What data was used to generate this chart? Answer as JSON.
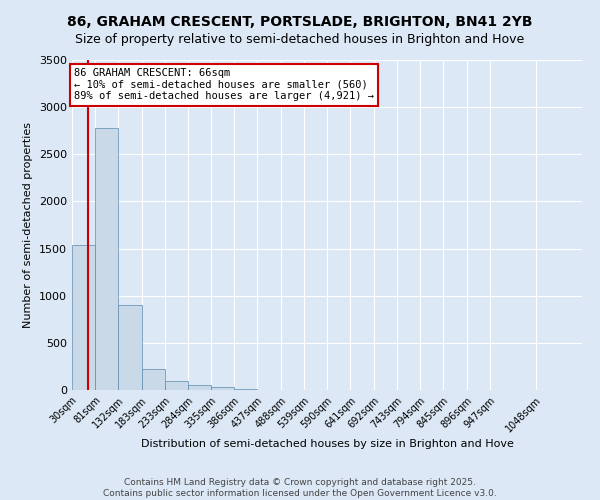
{
  "title": "86, GRAHAM CRESCENT, PORTSLADE, BRIGHTON, BN41 2YB",
  "subtitle": "Size of property relative to semi-detached houses in Brighton and Hove",
  "xlabel": "Distribution of semi-detached houses by size in Brighton and Hove",
  "ylabel": "Number of semi-detached properties",
  "bin_edges": [
    30,
    81,
    132,
    183,
    233,
    284,
    335,
    386,
    437,
    488,
    539,
    590,
    641,
    692,
    743,
    794,
    845,
    896,
    947,
    1048
  ],
  "bar_heights": [
    1540,
    2780,
    900,
    220,
    100,
    50,
    30,
    10,
    4,
    2,
    1,
    1,
    0,
    1,
    0,
    0,
    0,
    0,
    2
  ],
  "bar_color": "#c9d9e8",
  "bar_edge_color": "#5a8ab0",
  "property_size": 66,
  "ylim": [
    0,
    3500
  ],
  "annotation_title": "86 GRAHAM CRESCENT: 66sqm",
  "annotation_line1": "← 10% of semi-detached houses are smaller (560)",
  "annotation_line2": "89% of semi-detached houses are larger (4,921) →",
  "red_line_color": "#cc0000",
  "annotation_box_color": "#ffffff",
  "annotation_box_edge_color": "#cc0000",
  "footer_line1": "Contains HM Land Registry data © Crown copyright and database right 2025.",
  "footer_line2": "Contains public sector information licensed under the Open Government Licence v3.0.",
  "background_color": "#dce8f5",
  "plot_bg_color": "#dce8f5",
  "title_fontsize": 10,
  "tick_label_fontsize": 7,
  "ylabel_fontsize": 8,
  "xlabel_fontsize": 8,
  "footer_fontsize": 6.5
}
